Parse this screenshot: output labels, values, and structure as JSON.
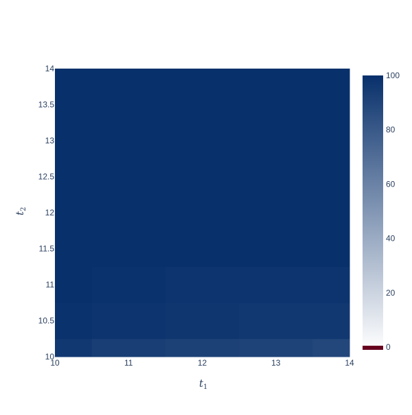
{
  "chart_data": {
    "type": "heatmap",
    "title": "",
    "xlabel": "t",
    "xlabel_sub": "1",
    "ylabel": "t",
    "ylabel_sub": "2",
    "x_range": [
      10,
      14
    ],
    "y_range": [
      10,
      14
    ],
    "x_ticks": [
      "10",
      "11",
      "12",
      "13",
      "14"
    ],
    "y_ticks": [
      "10",
      "10.5",
      "11",
      "11.5",
      "12",
      "12.5",
      "13",
      "13.5",
      "14"
    ],
    "x_centers": [
      10,
      11,
      12,
      13,
      14
    ],
    "y_centers": [
      10,
      10.5,
      11,
      11.5,
      12,
      12.5,
      13,
      13.5,
      14
    ],
    "z": [
      [
        96,
        93,
        92,
        91,
        89
      ],
      [
        99,
        98,
        97,
        96,
        96
      ],
      [
        100,
        99,
        98,
        98,
        98
      ],
      [
        100,
        100,
        100,
        100,
        100
      ],
      [
        100,
        100,
        100,
        100,
        100
      ],
      [
        100,
        100,
        100,
        100,
        100
      ],
      [
        100,
        100,
        100,
        100,
        100
      ],
      [
        100,
        100,
        100,
        100,
        100
      ],
      [
        100,
        100,
        100,
        100,
        100
      ]
    ],
    "colorbar": {
      "min": 0,
      "max": 100,
      "ticks": [
        "0",
        "20",
        "40",
        "60",
        "80",
        "100"
      ],
      "colorscale": [
        "#ffffff",
        "#08306b"
      ],
      "zero_color": "#67001f"
    }
  }
}
